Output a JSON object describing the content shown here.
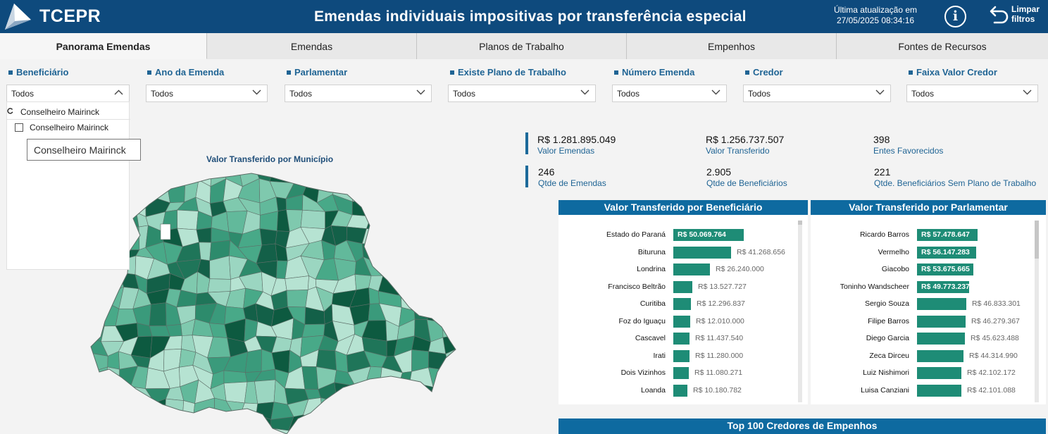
{
  "header": {
    "brand": "TCEPR",
    "title": "Emendas individuais impositivas por transferência especial",
    "updated_line1": "Última atualização em",
    "updated_line2": "27/05/2025 08:34:16",
    "info_label": "i",
    "clear_line1": "Limpar",
    "clear_line2": "filtros",
    "colors": {
      "header_bg": "#0e4a7d",
      "accent": "#1e8c76",
      "panel_title_bg": "#0e6aa0"
    }
  },
  "tabs": [
    {
      "label": "Panorama Emendas",
      "active": true
    },
    {
      "label": "Emendas",
      "active": false
    },
    {
      "label": "Planos de Trabalho",
      "active": false
    },
    {
      "label": "Empenhos",
      "active": false
    },
    {
      "label": "Fontes de Recursos",
      "active": false
    }
  ],
  "filters": [
    {
      "label": "Beneficiário",
      "value": "Todos",
      "open": true
    },
    {
      "label": "Ano da Emenda",
      "value": "Todos"
    },
    {
      "label": "Parlamentar",
      "value": "Todos"
    },
    {
      "label": "Existe Plano de Trabalho",
      "value": "Todos"
    },
    {
      "label": "Número Emenda",
      "value": "Todos"
    },
    {
      "label": "Credor",
      "value": "Todos"
    },
    {
      "label": "Faixa Valor Credor",
      "value": "Todos"
    }
  ],
  "dropdown": {
    "search_text": "Conselheiro Mairinck",
    "option": "Conselheiro Mairinck",
    "tooltip": "Conselheiro Mairinck"
  },
  "map": {
    "title": "Valor Transferido por Município"
  },
  "kpis": [
    {
      "value": "R$ 1.281.895.049",
      "label": "Valor Emendas"
    },
    {
      "value": "R$ 1.256.737.507",
      "label": "Valor Transferido"
    },
    {
      "value": "398",
      "label": "Entes Favorecidos"
    },
    {
      "value": "246",
      "label": "Qtde de Emendas"
    },
    {
      "value": "2.905",
      "label": "Qtde de Beneficiários"
    },
    {
      "value": "221",
      "label": "Qtde. Beneficiários Sem Plano de Trabalho"
    }
  ],
  "chart_data": [
    {
      "type": "bar",
      "orientation": "horizontal",
      "title": "Valor Transferido por Beneficiário",
      "categories": [
        "Estado do Paraná",
        "Bituruna",
        "Londrina",
        "Francisco Beltrão",
        "Curitiba",
        "Foz do Iguaçu",
        "Cascavel",
        "Irati",
        "Dois Vizinhos",
        "Loanda"
      ],
      "values": [
        50069764,
        41268656,
        26240000,
        13527727,
        12296837,
        12010000,
        11437540,
        11280000,
        11080271,
        10180782
      ],
      "labels": [
        "R$ 50.069.764",
        "R$ 41.268.656",
        "R$ 26.240.000",
        "R$ 13.527.727",
        "R$ 12.296.837",
        "R$ 12.010.000",
        "R$ 11.437.540",
        "R$ 11.280.000",
        "R$ 11.080.271",
        "R$ 10.180.782"
      ]
    },
    {
      "type": "bar",
      "orientation": "horizontal",
      "title": "Valor Transferido por Parlamentar",
      "categories": [
        "Ricardo Barros",
        "Vermelho",
        "Giacobo",
        "Toninho Wandscheer",
        "Sergio Souza",
        "Filipe Barros",
        "Diego Garcia",
        "Zeca Dirceu",
        "Luiz Nishimori",
        "Luisa Canziani"
      ],
      "values": [
        57478647,
        56147283,
        53675665,
        49773237,
        46833301,
        46279367,
        45623488,
        44314990,
        42102172,
        42101088
      ],
      "labels": [
        "R$ 57.478.647",
        "R$ 56.147.283",
        "R$ 53.675.665",
        "R$ 49.773.237",
        "R$ 46.833.301",
        "R$ 46.279.367",
        "R$ 45.623.488",
        "R$ 44.314.990",
        "R$ 42.102.172",
        "R$ 42.101.088"
      ]
    }
  ],
  "bottom": {
    "title": "Top 100 Credores de Empenhos"
  }
}
